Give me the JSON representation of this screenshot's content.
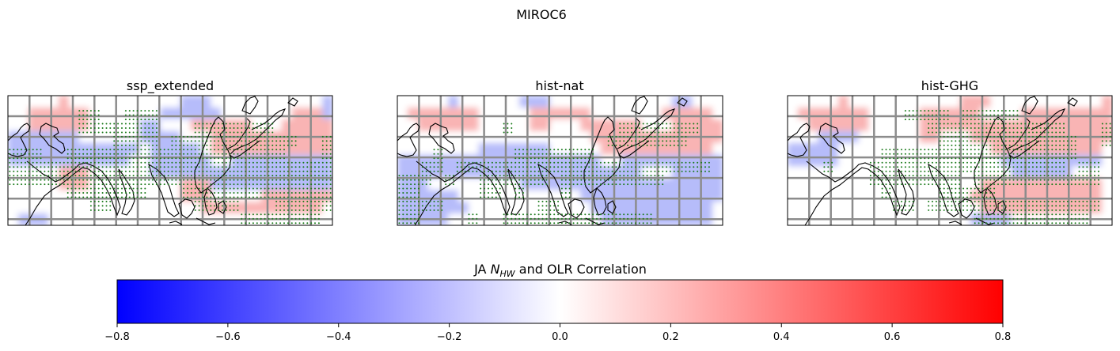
{
  "figure_title": "MIROC6",
  "chart_data": {
    "type": "heatmap",
    "panels": [
      {
        "title": "ssp_extended",
        "rows": [
          "  wwwr           bbb        wwwb",
          " wrrrrrr      wbbbbbb    wwwrrrb",
          "wwrrrrrrwww  bbwwwrrrrrrwwwrrrrr",
          "bbbbbbbwwwwwwbbbbwwwrrrrrrrrrrrr",
          "bbbbbbbbbbbbbwbbbbbwrrrrrrrrrrrr",
          "bbbbbbbbbbbbwwbbbbbbwwbbbbbbbbbb",
          "wwwwwrrrwwwwwwbbbbbbbbbbbbbbbbbb",
          "wwwwwrrrwwwwwwwwwrrrbbbbbbbbbbbb",
          "wwwwwwwwwwwwwwwwwrrrwwwwwrrrrrrr",
          "wwwwwwwwwwwwwwwwwwwrrrrrrrrrrrrw",
          "wbbbwwwwwwwwwwwwwwwwwwwwwwwwwwww"
        ],
        "stipple": [
          "                            ",
          "      xx  xxx               ",
          "      xxxxxxx   xxxxxxx     ",
          "         xxxx xxxxxxxxxxx  x",
          "xxx  xxxxxxxxxxxxxxxxxxx   x",
          "xxxxxxxxxxxxxxxxxxxxxxxxxxxx",
          "xxxxxxxxxxxxxxxxxxxxxxxxxxxx",
          "     xxxxxxx   xxxxxxxxxxxxx",
          "       xx       xxxx   xxxxx",
          "                    xxxxxxx "
        ]
      },
      {
        "title": "hist-nat",
        "rows": [
          "  wwwb      bbb         wwwbb   ",
          " rrrrrrr     rrrrrr    wwwrrrrr ",
          "wwrrrrrrwww  rrwwwrrrrrrwwwrrrrr",
          "wwwwwwwwwwwwwwwwwwwrrrrrrrrrrrrr",
          "wwwwwwwwbbbbbbbwwwwwrrrrrrrrrrrw",
          "bbbbbbbbbbbbbbbbbbbbwwbbbbbbbbbb",
          "bbbbbbbbbbbbbbbbbbbbbbbbwwwbbbbb",
          "bbbwwwwwwwwwbbbbbbbbbbbbbbbbbbbb",
          "bbbbbbwwwwwwwwwwwwbbbbbbbbbbbbbb",
          "bbbbbbbwwwwwwwwwwwwbbbbbbbbbbbbw",
          "bbbbbwwwwwwwwwwwwwwwbbbbbbbbbbbw"
        ],
        "stipple": [
          "                            ",
          "                            ",
          "         x         xxxxxxx  ",
          "                  xxxxxxx   ",
          "   x      xxxxxxx           ",
          "  xx xxxxxxxxxxxxxxxxxxxxxx ",
          "xxx x  xxxxxx xxxxxxxxx     ",
          "xx     xx x   x             ",
          "xxxx        xx              ",
          "xx    x  xxxxxxxxxxxxx      "
        ]
      },
      {
        "title": "hist-GHG",
        "rows": [
          "  wwwr           rrr        wwwr",
          " rrrrrrr     rrrrrr    rrrrrrrrr",
          "wwrrrrrrwww  rrrrrrrrrrrrrrrrrrr",
          "wwwbbbbwwwwwwrrwwwrrrrrrrrrrrrrr",
          "bbbbbwwwwwwwwwwwwwwwrrrrrrrrrrrw",
          "bbbbbwwwwwwwwwwwwwwwwbbbbbbbbbbw",
          "wwwwwwwwwwwwwwwwwwwwwwbbbbbbwwww",
          "wwwwwwwwwwwwwwwwwwwrrrrrrrrrrrrw",
          "wwwwwwwwwwwwwwwwwwrrrrrrrrrrrrrw",
          "wwwwwwwwwwwwwwwwwwwrrrrrrrrrrrrw",
          "wwwwwwwwwwwwwwwwwwbbbbwwwwwwwwww"
        ],
        "stipple": [
          "                            ",
          "          xxxx xxxxx        ",
          "            xxxxxxxxxxxx   x",
          "             xxxxxxxxxxxx  x",
          "        xxxxxxxxxxxxxxxxx   ",
          "   x   xxxxxxxxxxxxxxxxx xx ",
          "       xxxxxxxx xxxxxxxxxxx ",
          "        x    xxxxx          ",
          "         xx xxxxxxxxxxxxxxx ",
          "                xxxxxxxxxx  "
        ]
      }
    ],
    "colorbar": {
      "label_prefix": "JA ",
      "label_var": "N",
      "label_sub": "HW",
      "label_suffix": " and OLR Correlation",
      "ticks": [
        "−0.8",
        "−0.6",
        "−0.4",
        "−0.2",
        "0.0",
        "0.2",
        "0.4",
        "0.6",
        "0.8"
      ],
      "min": -0.8,
      "max": 0.8,
      "colors": [
        "#0000ff",
        "#ffffff",
        "#ff0000"
      ]
    },
    "stipple_color": "#1a7a1a",
    "gridline_color": "#8c8c8c"
  }
}
